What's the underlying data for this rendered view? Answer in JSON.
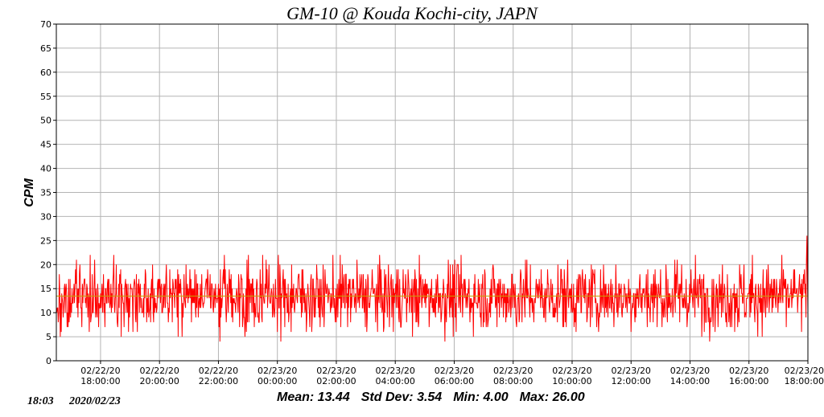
{
  "chart_data": {
    "type": "line",
    "title": "GM-10 @ Kouda Kochi-city, JAPN",
    "ylabel": "CPM",
    "xlabel": "",
    "ylim": [
      0,
      70
    ],
    "y_ticks": [
      0,
      5,
      10,
      15,
      20,
      25,
      30,
      35,
      40,
      45,
      50,
      55,
      60,
      65,
      70
    ],
    "xlim": [
      "2020-02-22T16:30:00",
      "2020-02-23T18:00:00"
    ],
    "x_ticks": [
      {
        "date": "02/22/20",
        "time": "18:00:00"
      },
      {
        "date": "02/22/20",
        "time": "20:00:00"
      },
      {
        "date": "02/22/20",
        "time": "22:00:00"
      },
      {
        "date": "02/23/20",
        "time": "00:00:00"
      },
      {
        "date": "02/23/20",
        "time": "02:00:00"
      },
      {
        "date": "02/23/20",
        "time": "04:00:00"
      },
      {
        "date": "02/23/20",
        "time": "06:00:00"
      },
      {
        "date": "02/23/20",
        "time": "08:00:00"
      },
      {
        "date": "02/23/20",
        "time": "10:00:00"
      },
      {
        "date": "02/23/20",
        "time": "12:00:00"
      },
      {
        "date": "02/23/20",
        "time": "14:00:00"
      },
      {
        "date": "02/23/20",
        "time": "16:00:00"
      },
      {
        "date": "02/23/20",
        "time": "18:00:00"
      }
    ],
    "grid": true,
    "series": [
      {
        "color": "#ff0000",
        "mean": 13.44,
        "std": 3.54,
        "min": 4.0,
        "max": 26.0,
        "sample_interval_min": 1
      },
      {
        "color": "#c8a000",
        "value": 13.44
      }
    ]
  },
  "stats": {
    "mean": "Mean: 13.44",
    "std": "Std Dev: 3.54",
    "min": "Min: 4.00",
    "max": "Max: 26.00"
  },
  "footer": {
    "time": "18:03",
    "date": "2020/02/23"
  },
  "colors": {
    "data_line": "#ff0000",
    "mean_line": "#c8a000",
    "grid": "#b4b4b4",
    "background": "#ffffff"
  }
}
